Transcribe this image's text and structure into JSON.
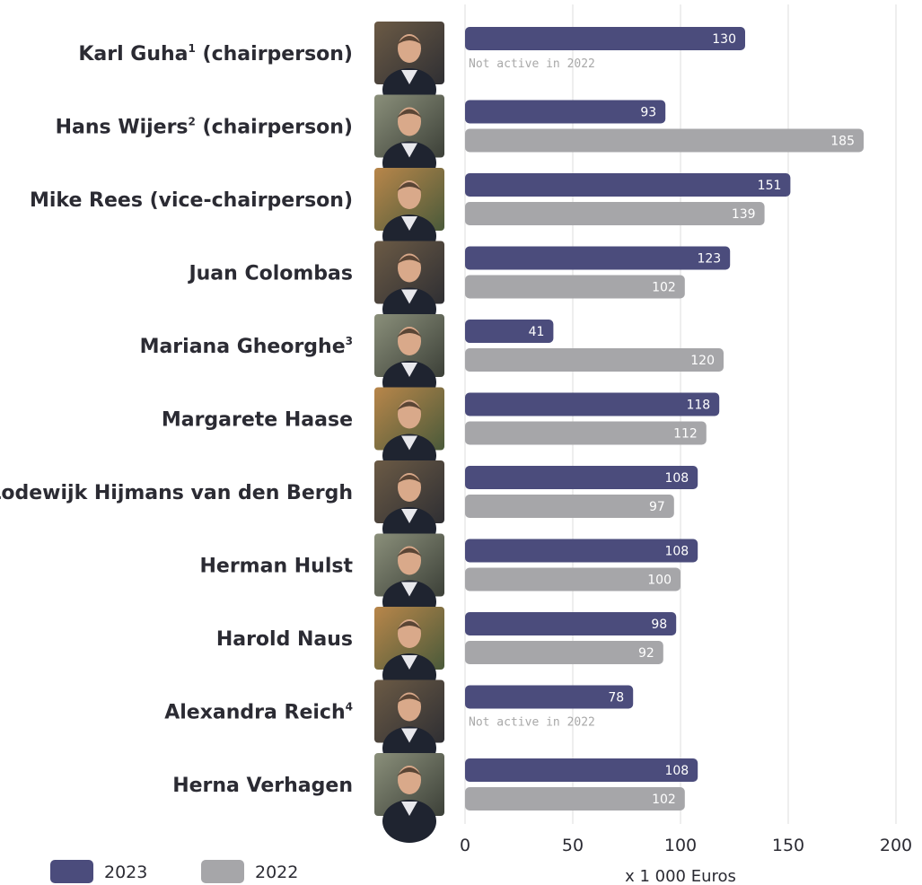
{
  "chart_data": {
    "type": "bar",
    "orientation": "horizontal",
    "categories": [
      {
        "name": "Karl Guha",
        "sup": "1",
        "role": " (chairperson)"
      },
      {
        "name": "Hans Wijers",
        "sup": "2",
        "role": " (chairperson)"
      },
      {
        "name": "Mike Rees",
        "sup": "",
        "role": " (vice-chairperson)"
      },
      {
        "name": "Juan Colombas",
        "sup": "",
        "role": ""
      },
      {
        "name": "Mariana Gheorghe",
        "sup": "3",
        "role": ""
      },
      {
        "name": "Margarete Haase",
        "sup": "",
        "role": ""
      },
      {
        "name": "Lodewijk Hijmans van den Bergh",
        "sup": "",
        "role": ""
      },
      {
        "name": "Herman Hulst",
        "sup": "",
        "role": ""
      },
      {
        "name": "Harold Naus",
        "sup": "",
        "role": ""
      },
      {
        "name": "Alexandra Reich",
        "sup": "4",
        "role": ""
      },
      {
        "name": "Herna Verhagen",
        "sup": "",
        "role": ""
      }
    ],
    "series": [
      {
        "name": "2023",
        "color": "#4b4c7c",
        "values": [
          130,
          93,
          151,
          123,
          41,
          118,
          108,
          108,
          98,
          78,
          108
        ]
      },
      {
        "name": "2022",
        "color": "#a6a6a9",
        "values": [
          null,
          185,
          139,
          102,
          120,
          112,
          97,
          100,
          92,
          null,
          102
        ]
      }
    ],
    "missing_label": "Not active in 2022",
    "xlim": [
      0,
      200
    ],
    "xticks": [
      0,
      50,
      100,
      150,
      200
    ],
    "xlabel": "x 1 000 Euros",
    "grid": true,
    "legend_position": "bottom-left"
  }
}
